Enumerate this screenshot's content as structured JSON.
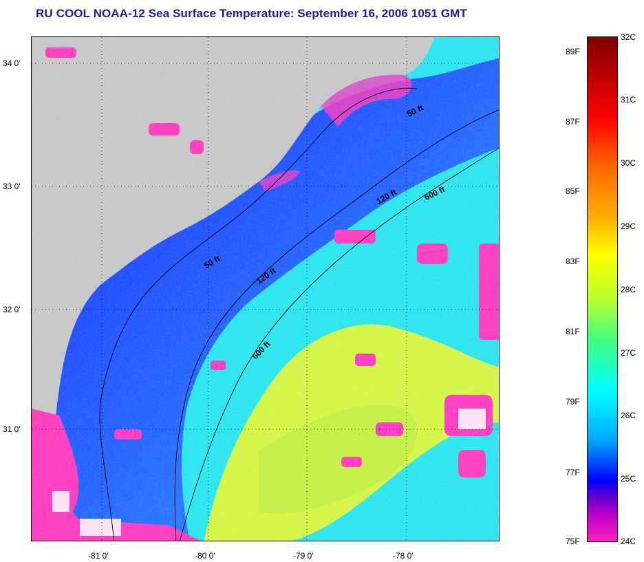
{
  "title": "RU COOL  NOAA-12  Sea Surface Temperature:  September 16, 2006 1051 GMT",
  "map": {
    "lat_labels": [
      "34 0'",
      "33 0'",
      "32 0'",
      "31 0'"
    ],
    "lon_labels": [
      "-81 0'",
      "-80 0'",
      "-79 0'",
      "-78 0'"
    ],
    "isobath_labels": [
      "50 ft",
      "50 ft",
      "120 ft",
      "120 ft",
      "600 ft",
      "600 ft"
    ],
    "colors": {
      "land": "#c8c8c8",
      "cold_shelf": "#1540ff",
      "mid_shelf": "#2f8fff",
      "warm_gulfstream": "#d8ff40",
      "cyan_water": "#30e6ee",
      "cloud_mask": "#ff40c0"
    }
  },
  "colorbar": {
    "celsius": [
      "32C",
      "31C",
      "30C",
      "29C",
      "28C",
      "27C",
      "26C",
      "25C",
      "24C"
    ],
    "fahrenheit": [
      "89F",
      "87F",
      "85F",
      "83F",
      "81F",
      "79F",
      "77F",
      "75F"
    ]
  }
}
